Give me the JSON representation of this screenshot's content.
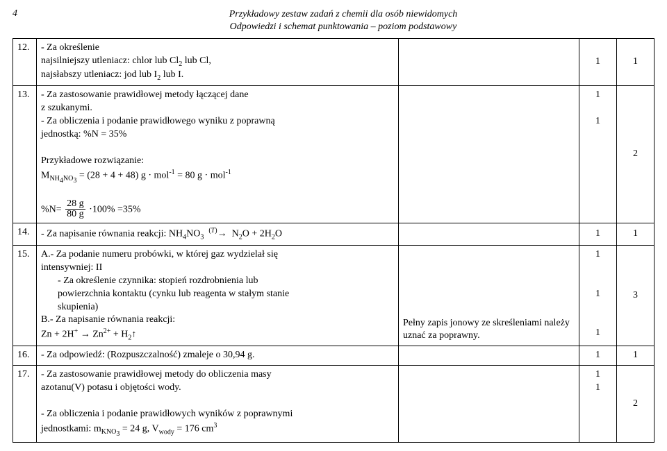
{
  "header": {
    "page_number": "4",
    "title_line1": "Przykładowy zestaw zadań z chemii dla osób niewidomych",
    "title_line2": "Odpowiedzi i schemat punktowania – poziom podstawowy"
  },
  "rows": [
    {
      "num": "12.",
      "content_html": "- Za określenie<br>najsilniejszy utleniacz: chlor lub Cl<sub>2</sub> lub Cl,<br>najsłabszy utleniacz: jod lub I<sub>2</sub> lub I.",
      "note": "",
      "pts": "1",
      "total": "1"
    },
    {
      "num": "13.",
      "content_html": "- Za zastosowanie prawidłowej metody łączącej dane<br>z szukanymi.<br>- Za obliczenia i podanie prawidłowego wyniku z poprawną<br>jednostką: %N = 35%<br><br>Przykładowe rozwiązanie:<br>M<sub>NH<sub>4</sub>NO<sub>3</sub></sub> = (28 + 4 + 48) g · mol<sup>-1</sup> = 80 g · mol<sup>-1</sup><br><br>%N= <span class=\"frac\"><span class=\"top\">28 g</span><span class=\"bot\">80 g</span></span> ·100% =35%",
      "note": "",
      "pts_html": "1<br><br>1",
      "total": "2"
    },
    {
      "num": "14.",
      "content_html": "- Za napisanie równania reakcji: NH<sub>4</sub>NO<sub>3</sub> &nbsp;<sup>(<i>T</i>)</sup>→&nbsp; N<sub>2</sub>O + 2H<sub>2</sub>O",
      "note": "",
      "pts": "1",
      "total": "1"
    },
    {
      "num": "15.",
      "content_html": "A.- Za podanie numeru probówki, w której gaz wydzielał się<br>intensywniej: II<br><span class=\"indent\">- Za określenie czynnika: stopień rozdrobnienia lub<br>powierzchnia kontaktu (cynku lub reagenta w stałym stanie<br>skupienia)</span>B.- Za napisanie równania reakcji:<br>Zn + 2H<sup>+</sup> → Zn<sup>2+</sup> + H<sub>2</sub>↑",
      "note": "Pełny zapis jonowy ze skreśleniami należy uznać za poprawny.",
      "pts_html": "1<br><br><br>1<br><br><br>1",
      "total": "3"
    },
    {
      "num": "16.",
      "content_html": "- Za odpowiedź: (Rozpuszczalność) zmaleje o 30,94 g.",
      "note": "",
      "pts": "1",
      "total": "1"
    },
    {
      "num": "17.",
      "content_html": "- Za zastosowanie prawidłowej metody do obliczenia masy<br>azotanu(V) potasu i objętości wody.<br><br>- Za obliczenia i podanie prawidłowych wyników z poprawnymi<br>jednostkami: m<sub>KNO<sub>3</sub></sub> = 24 g, V<sub>wody</sub> = 176 cm<sup>3</sup>",
      "note": "",
      "pts_html": "1<br>1",
      "total": "2"
    }
  ]
}
